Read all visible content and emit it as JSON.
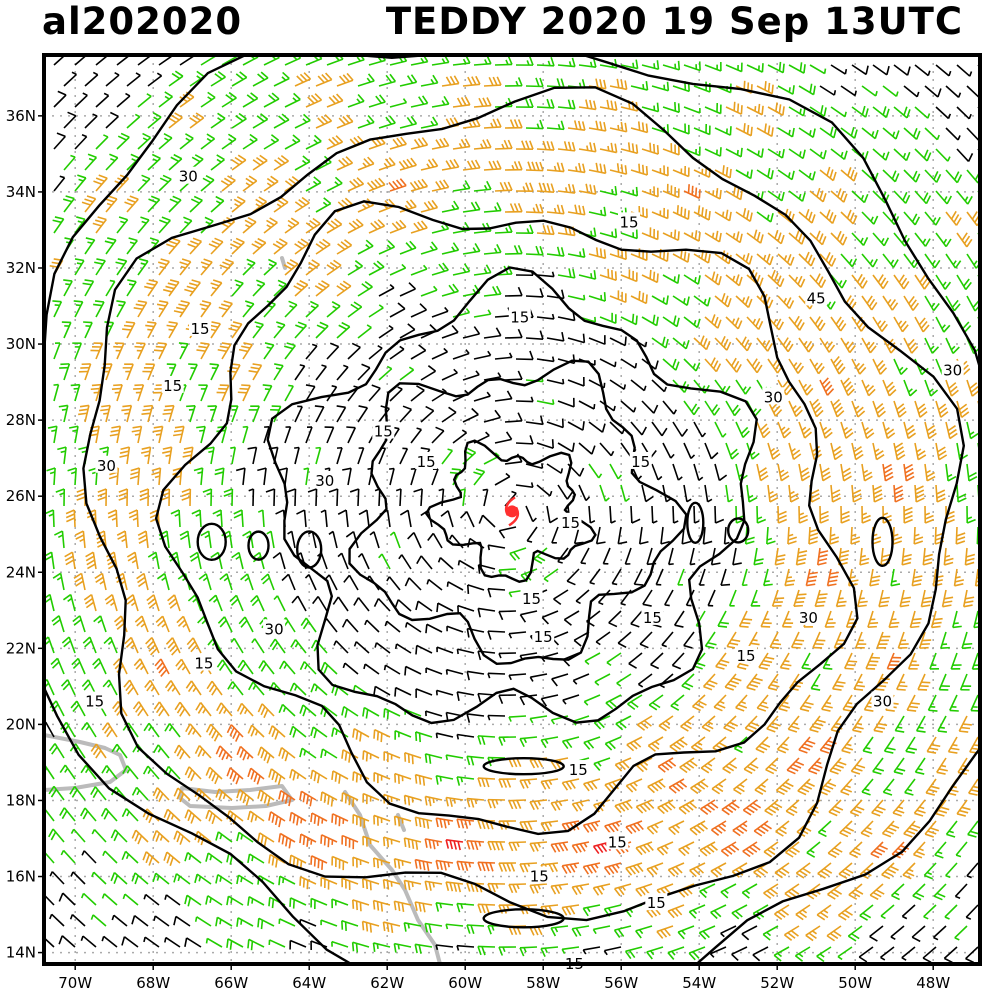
{
  "header": {
    "storm_id": "al202020",
    "title": "TEDDY 2020 19 Sep 13UTC"
  },
  "map": {
    "lon_range": [
      -70.8,
      -46.8
    ],
    "lat_range": [
      13.7,
      37.6
    ],
    "lon_ticks": [
      {
        "value": -70,
        "label": "70W"
      },
      {
        "value": -68,
        "label": "68W"
      },
      {
        "value": -66,
        "label": "66W"
      },
      {
        "value": -64,
        "label": "64W"
      },
      {
        "value": -62,
        "label": "62W"
      },
      {
        "value": -60,
        "label": "60W"
      },
      {
        "value": -58,
        "label": "58W"
      },
      {
        "value": -56,
        "label": "56W"
      },
      {
        "value": -54,
        "label": "54W"
      },
      {
        "value": -52,
        "label": "52W"
      },
      {
        "value": -50,
        "label": "50W"
      },
      {
        "value": -48,
        "label": "48W"
      }
    ],
    "lat_ticks": [
      {
        "value": 14,
        "label": "14N"
      },
      {
        "value": 16,
        "label": "16N"
      },
      {
        "value": 18,
        "label": "18N"
      },
      {
        "value": 20,
        "label": "20N"
      },
      {
        "value": 22,
        "label": "22N"
      },
      {
        "value": 24,
        "label": "24N"
      },
      {
        "value": 26,
        "label": "26N"
      },
      {
        "value": 28,
        "label": "28N"
      },
      {
        "value": 30,
        "label": "30N"
      },
      {
        "value": 32,
        "label": "32N"
      },
      {
        "value": 34,
        "label": "34N"
      },
      {
        "value": 36,
        "label": "36N"
      }
    ],
    "storm_center": {
      "lon": -58.8,
      "lat": 25.6
    },
    "colors": {
      "calm": "#000000",
      "moderate": "#22cc00",
      "strong": "#e8a020",
      "very_strong": "#f07020",
      "extreme": "#ee2020",
      "storm_marker": "#ff3030",
      "coastline": "#bbbbbb",
      "grid": "#aaaaaa"
    },
    "contour_labels": [
      {
        "text": "30",
        "lon": -67.1,
        "lat": 34.4
      },
      {
        "text": "15",
        "lon": -66.8,
        "lat": 30.4
      },
      {
        "text": "15",
        "lon": -67.5,
        "lat": 28.9
      },
      {
        "text": "30",
        "lon": -69.2,
        "lat": 26.8
      },
      {
        "text": "30",
        "lon": -63.6,
        "lat": 26.4
      },
      {
        "text": "15",
        "lon": -62.1,
        "lat": 27.7
      },
      {
        "text": "15",
        "lon": -61.0,
        "lat": 26.9
      },
      {
        "text": "15",
        "lon": -58.6,
        "lat": 30.7
      },
      {
        "text": "15",
        "lon": -55.8,
        "lat": 33.2
      },
      {
        "text": "45",
        "lon": -51.0,
        "lat": 31.2
      },
      {
        "text": "30",
        "lon": -47.5,
        "lat": 29.3
      },
      {
        "text": "30",
        "lon": -52.1,
        "lat": 28.6
      },
      {
        "text": "15",
        "lon": -55.5,
        "lat": 26.9
      },
      {
        "text": "15",
        "lon": -57.3,
        "lat": 25.3
      },
      {
        "text": "15",
        "lon": -58.3,
        "lat": 23.3
      },
      {
        "text": "15",
        "lon": -58.0,
        "lat": 22.3
      },
      {
        "text": "15",
        "lon": -55.2,
        "lat": 22.8
      },
      {
        "text": "30",
        "lon": -51.2,
        "lat": 22.8
      },
      {
        "text": "15",
        "lon": -52.8,
        "lat": 21.8
      },
      {
        "text": "30",
        "lon": -49.3,
        "lat": 20.6
      },
      {
        "text": "30",
        "lon": -64.9,
        "lat": 22.5
      },
      {
        "text": "15",
        "lon": -66.7,
        "lat": 21.6
      },
      {
        "text": "15",
        "lon": -69.5,
        "lat": 20.6
      },
      {
        "text": "15",
        "lon": -57.1,
        "lat": 18.8
      },
      {
        "text": "15",
        "lon": -58.1,
        "lat": 16.0
      },
      {
        "text": "15",
        "lon": -56.1,
        "lat": 16.9
      },
      {
        "text": "15",
        "lon": -55.1,
        "lat": 15.3
      },
      {
        "text": "15",
        "lon": -57.2,
        "lat": 13.7
      }
    ]
  }
}
